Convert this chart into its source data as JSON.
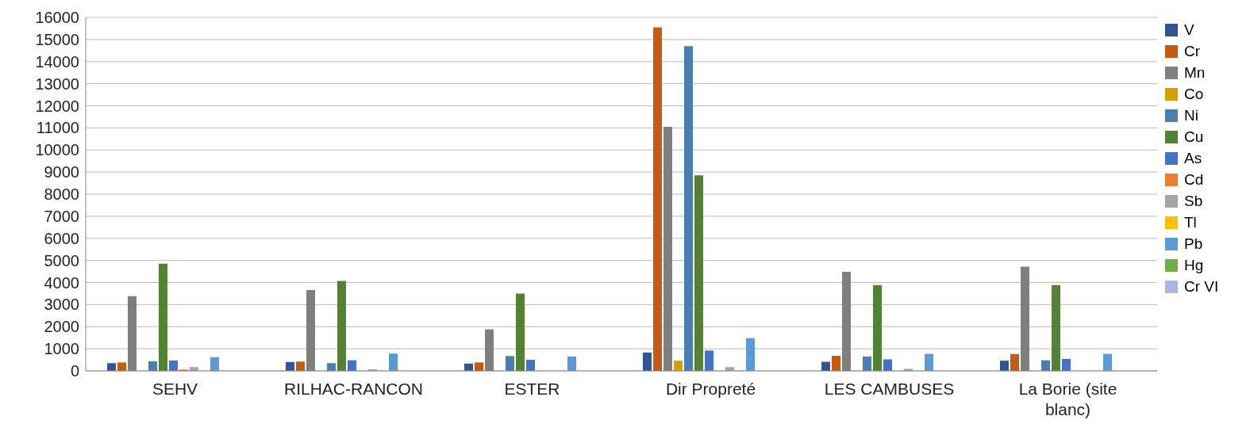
{
  "chart_data": {
    "type": "bar",
    "categories": [
      "SEHV",
      "RILHAC-RANCON",
      "ESTER",
      "Dir Propreté",
      "LES CAMBUSES",
      "La Borie (site blanc)"
    ],
    "series": [
      {
        "name": "V",
        "color": "#2f5597",
        "values": [
          350,
          400,
          330,
          830,
          410,
          460
        ]
      },
      {
        "name": "Cr",
        "color": "#c55a11",
        "values": [
          380,
          420,
          380,
          15550,
          680,
          760
        ]
      },
      {
        "name": "Mn",
        "color": "#7f7f7f",
        "values": [
          3380,
          3660,
          1880,
          11050,
          4480,
          4720
        ]
      },
      {
        "name": "Co",
        "color": "#d4a000",
        "values": [
          0,
          0,
          0,
          460,
          0,
          0
        ]
      },
      {
        "name": "Ni",
        "color": "#4a7eb0",
        "values": [
          430,
          350,
          670,
          14700,
          650,
          480
        ]
      },
      {
        "name": "Cu",
        "color": "#548235",
        "values": [
          4850,
          4070,
          3500,
          8850,
          3880,
          3880
        ]
      },
      {
        "name": "As",
        "color": "#4472c4",
        "values": [
          470,
          480,
          500,
          920,
          520,
          540
        ]
      },
      {
        "name": "Cd",
        "color": "#ed7d31",
        "values": [
          60,
          0,
          0,
          null,
          0,
          0
        ]
      },
      {
        "name": "Sb",
        "color": "#a5a5a5",
        "values": [
          170,
          70,
          null,
          170,
          90,
          null
        ]
      },
      {
        "name": "Tl",
        "color": "#ffc000",
        "values": [
          0,
          0,
          0,
          0,
          0,
          0
        ]
      },
      {
        "name": "Pb",
        "color": "#5b9bd5",
        "values": [
          620,
          780,
          650,
          1480,
          770,
          770
        ]
      },
      {
        "name": "Hg",
        "color": "#70ad47",
        "values": [
          0,
          0,
          0,
          0,
          0,
          0
        ]
      },
      {
        "name": "Cr VI",
        "color": "#a9b5dc",
        "values": [
          0,
          0,
          0,
          0,
          0,
          0
        ]
      }
    ],
    "ylim": [
      0,
      16000
    ],
    "yticks": [
      0,
      1000,
      2000,
      3000,
      4000,
      5000,
      6000,
      7000,
      8000,
      9000,
      10000,
      11000,
      12000,
      13000,
      14000,
      15000,
      16000
    ],
    "grid": "y",
    "legend": "right"
  }
}
